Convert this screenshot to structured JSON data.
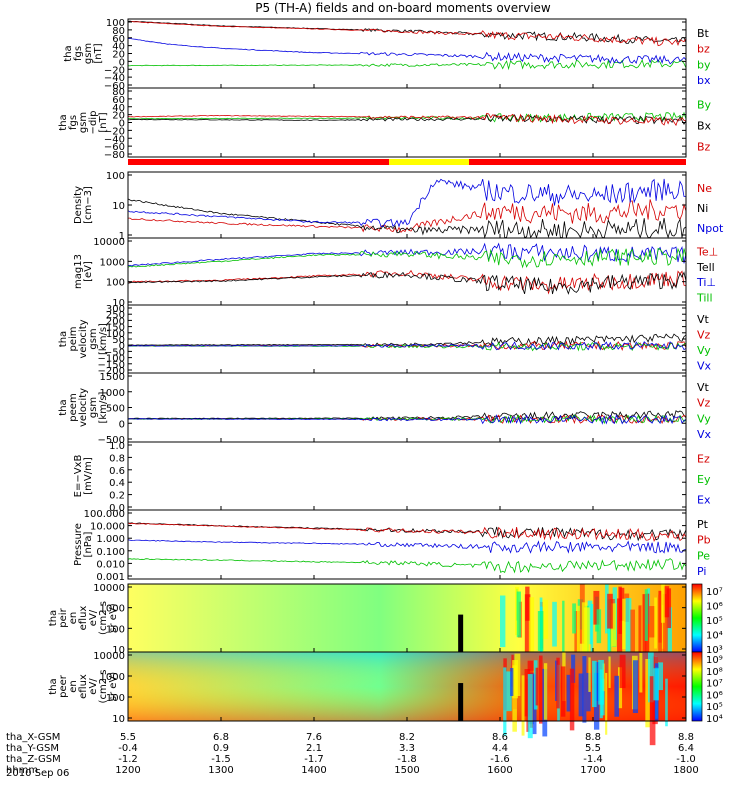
{
  "chart_data": {
    "type": "line",
    "title": "P5 (TH-A) fields and on-board moments overview",
    "date": "2010 Sep 06",
    "x_rows": [
      {
        "label": "tha_X-GSM",
        "values": [
          "5.5",
          "6.8",
          "7.6",
          "8.2",
          "8.6",
          "8.8",
          "8.8"
        ]
      },
      {
        "label": "tha_Y-GSM",
        "values": [
          "-0.4",
          "0.9",
          "2.1",
          "3.3",
          "4.4",
          "5.5",
          "6.4"
        ]
      },
      {
        "label": "tha_Z-GSM",
        "values": [
          "-1.2",
          "-1.5",
          "-1.7",
          "-1.8",
          "-1.6",
          "-1.4",
          "-1.0"
        ]
      },
      {
        "label": "hhmm",
        "values": [
          "1200",
          "1300",
          "1400",
          "1500",
          "1600",
          "1700",
          "1800"
        ]
      }
    ],
    "panels": [
      {
        "id": "p1",
        "kind": "line",
        "ylabel": [
          "tha",
          "fgs",
          "gsm",
          "[nT]"
        ],
        "ylim": [
          -60,
          100
        ],
        "ticks": [
          "100",
          "80",
          "60",
          "40",
          "20",
          "0",
          "−20",
          "−40",
          "−60"
        ],
        "legend": [
          {
            "name": "Bt",
            "color": "#000000"
          },
          {
            "name": "bz",
            "color": "#d40000"
          },
          {
            "name": "by",
            "color": "#00c000"
          },
          {
            "name": "bx",
            "color": "#0000e0"
          }
        ]
      },
      {
        "id": "p2",
        "kind": "line",
        "ylabel": [
          "tha",
          "fgs",
          "gsm",
          "−dip",
          "[nT]"
        ],
        "ylim": [
          -100,
          80
        ],
        "ticks": [
          "80",
          "60",
          "40",
          "20",
          "0",
          "−20",
          "−40",
          "−60",
          "−80"
        ],
        "legend": [
          {
            "name": "By",
            "color": "#00c000"
          },
          {
            "name": "Bx",
            "color": "#000000"
          },
          {
            "name": "Bz",
            "color": "#d40000"
          }
        ]
      },
      {
        "id": "p4",
        "kind": "line",
        "ylabel": [
          "Density",
          "[cm−3]"
        ],
        "log": true,
        "ylim": [
          0.4,
          200
        ],
        "ticks": [
          "100",
          "10",
          "1"
        ],
        "legend": [
          {
            "name": "Ne",
            "color": "#d40000"
          },
          {
            "name": "Ni",
            "color": "#000000"
          },
          {
            "name": "Npot",
            "color": "#0000e0"
          }
        ]
      },
      {
        "id": "p5",
        "kind": "line",
        "ylabel": [
          "mag13",
          "[eV]"
        ],
        "log": true,
        "ylim": [
          6,
          20000
        ],
        "ticks": [
          "10000",
          "1000",
          "100",
          "10"
        ],
        "legend": [
          {
            "name": "Te⊥",
            "color": "#d40000"
          },
          {
            "name": "Tell",
            "color": "#000000"
          },
          {
            "name": "Ti⊥",
            "color": "#0000e0"
          },
          {
            "name": "Till",
            "color": "#00c000"
          }
        ]
      },
      {
        "id": "p6",
        "kind": "line",
        "ylabel": [
          "tha",
          "peim",
          "velocity",
          "gsm",
          "[km/s]"
        ],
        "ylim": [
          -200,
          300
        ],
        "ticks": [
          "300",
          "250",
          "200",
          "150",
          "100",
          "50",
          "0",
          "−50",
          "−100",
          "−150",
          "−200"
        ],
        "legend": [
          {
            "name": "Vt",
            "color": "#000000"
          },
          {
            "name": "Vz",
            "color": "#d40000"
          },
          {
            "name": "Vy",
            "color": "#00c000"
          },
          {
            "name": "Vx",
            "color": "#0000e0"
          }
        ]
      },
      {
        "id": "p7",
        "kind": "line",
        "ylabel": [
          "tha",
          "peem",
          "velocity",
          "gsm",
          "[km/s]"
        ],
        "ylim": [
          -800,
          1600
        ],
        "ticks": [
          "1500",
          "1000",
          "500",
          "0",
          "−500"
        ],
        "legend": [
          {
            "name": "Vt",
            "color": "#000000"
          },
          {
            "name": "Vz",
            "color": "#d40000"
          },
          {
            "name": "Vy",
            "color": "#00c000"
          },
          {
            "name": "Vx",
            "color": "#0000e0"
          }
        ]
      },
      {
        "id": "p8",
        "kind": "line",
        "ylabel": [
          "E=−VxB",
          "[mV/m]"
        ],
        "ylim": [
          0,
          1
        ],
        "ticks": [
          "1.0",
          "0.8",
          "0.6",
          "0.4",
          "0.2",
          "0.0"
        ],
        "legend": [
          {
            "name": "Ez",
            "color": "#d40000"
          },
          {
            "name": "Ey",
            "color": "#00c000"
          },
          {
            "name": "Ex",
            "color": "#0000e0"
          }
        ]
      },
      {
        "id": "p9",
        "kind": "line",
        "ylabel": [
          "Pressure",
          "[nPa]"
        ],
        "log": true,
        "ylim": [
          0.0007,
          150
        ],
        "ticks": [
          "100.000",
          "10.000",
          "1.000",
          "0.100",
          "0.010",
          "0.001"
        ],
        "legend": [
          {
            "name": "Pt",
            "color": "#000000"
          },
          {
            "name": "Pb",
            "color": "#d40000"
          },
          {
            "name": "Pe",
            "color": "#00c000"
          },
          {
            "name": "Pi",
            "color": "#0000e0"
          }
        ]
      },
      {
        "id": "p10",
        "kind": "spectrogram",
        "ylabel": [
          "tha",
          "peir",
          "en",
          "eflux",
          "eV/",
          "(cm2 s",
          "sr eV)"
        ],
        "log": true,
        "ylim": [
          7,
          15000
        ],
        "ticks": [
          "10000",
          "1000",
          "100",
          "10"
        ],
        "colorbar": [
          "10⁷",
          "10⁶",
          "10⁵",
          "10⁴",
          "10³"
        ]
      },
      {
        "id": "p11",
        "kind": "spectrogram",
        "ylabel": [
          "tha",
          "peer",
          "en",
          "eflux",
          "eV/",
          "(cm2 s",
          "sr eV)"
        ],
        "log": true,
        "ylim": [
          7,
          15000
        ],
        "ticks": [
          "10000",
          "1000",
          "100",
          "10"
        ],
        "colorbar": [
          "10⁹",
          "10⁸",
          "10⁷",
          "10⁶",
          "10⁵",
          "10⁴"
        ]
      }
    ],
    "mode_bar": {
      "segments": [
        {
          "start_hhmm": "1200",
          "end_hhmm": "1508",
          "color": "#ff0000"
        },
        {
          "start_hhmm": "1508",
          "end_hhmm": "1538",
          "color": "#ffff00"
        },
        {
          "start_hhmm": "1538",
          "end_hhmm": "1800",
          "color": "#ff0000"
        }
      ]
    },
    "series_trends": {
      "p1": {
        "Bt": [
          [
            12,
            95
          ],
          [
            13,
            84
          ],
          [
            14,
            78
          ],
          [
            15,
            72
          ],
          [
            16,
            63
          ],
          [
            17,
            57
          ],
          [
            17.8,
            48
          ]
        ],
        "bz": [
          [
            12,
            94
          ],
          [
            13,
            83
          ],
          [
            14,
            77
          ],
          [
            15,
            71
          ],
          [
            16,
            62
          ],
          [
            17,
            56
          ],
          [
            17.8,
            46
          ]
        ],
        "by": [
          [
            12,
            -8
          ],
          [
            14,
            -7
          ],
          [
            16,
            -6
          ],
          [
            17.8,
            -4
          ]
        ],
        "bx": [
          [
            12,
            55
          ],
          [
            12.5,
            40
          ],
          [
            13,
            32
          ],
          [
            14,
            22
          ],
          [
            15,
            18
          ],
          [
            16,
            12
          ],
          [
            17,
            8
          ],
          [
            17.8,
            5
          ]
        ]
      },
      "p2": {
        "By": [
          [
            12,
            0
          ],
          [
            16,
            2
          ],
          [
            17.8,
            5
          ]
        ],
        "Bx": [
          [
            12,
            -2
          ],
          [
            14,
            -4
          ],
          [
            16,
            0
          ],
          [
            17.8,
            -5
          ]
        ],
        "Bz": [
          [
            12,
            5
          ],
          [
            13,
            8
          ],
          [
            14,
            6
          ],
          [
            15,
            4
          ],
          [
            16,
            3
          ],
          [
            17.8,
            -8
          ]
        ]
      },
      "p4": {
        "Ne": [
          [
            12,
            2.5
          ],
          [
            13,
            1.6
          ],
          [
            14,
            1.2
          ],
          [
            15,
            0.9
          ],
          [
            15.6,
            3
          ],
          [
            16,
            5
          ],
          [
            17,
            4
          ],
          [
            17.8,
            6
          ]
        ],
        "Ni": [
          [
            12,
            15
          ],
          [
            13,
            4
          ],
          [
            14,
            1.8
          ],
          [
            15,
            0.8
          ],
          [
            16,
            0.9
          ],
          [
            17,
            0.8
          ],
          [
            17.8,
            1
          ]
        ],
        "Npot": [
          [
            12,
            5
          ],
          [
            13,
            3
          ],
          [
            14,
            1.8
          ],
          [
            15,
            1.6
          ],
          [
            15.3,
            90
          ],
          [
            16,
            30
          ],
          [
            17,
            20
          ],
          [
            17.8,
            40
          ]
        ]
      },
      "p5": {
        "Te⊥": [
          [
            12,
            100
          ],
          [
            13,
            120
          ],
          [
            14,
            200
          ],
          [
            15,
            300
          ],
          [
            15.8,
            120
          ],
          [
            16.5,
            60
          ],
          [
            17,
            90
          ],
          [
            17.8,
            150
          ]
        ],
        "Tell": [
          [
            12,
            90
          ],
          [
            13,
            110
          ],
          [
            14,
            180
          ],
          [
            15,
            250
          ],
          [
            15.8,
            100
          ],
          [
            16.5,
            50
          ],
          [
            17,
            80
          ],
          [
            17.8,
            120
          ]
        ],
        "Ti⊥": [
          [
            12,
            700
          ],
          [
            13,
            1500
          ],
          [
            14,
            3000
          ],
          [
            15,
            3500
          ],
          [
            16,
            4000
          ],
          [
            17,
            3000
          ],
          [
            17.8,
            2500
          ]
        ],
        "Till": [
          [
            12,
            600
          ],
          [
            13,
            1200
          ],
          [
            14,
            2500
          ],
          [
            15,
            3000
          ],
          [
            16,
            1500
          ],
          [
            17,
            2000
          ],
          [
            17.8,
            2000
          ]
        ]
      },
      "p6": {
        "Vt": [
          [
            12,
            5
          ],
          [
            15,
            10
          ],
          [
            16,
            30
          ],
          [
            17,
            45
          ],
          [
            17.8,
            60
          ]
        ],
        "Vz": [
          [
            12,
            0
          ],
          [
            16,
            0
          ],
          [
            17.8,
            0
          ]
        ],
        "Vy": [
          [
            12,
            0
          ],
          [
            16,
            -5
          ],
          [
            17.8,
            -5
          ]
        ],
        "Vx": [
          [
            12,
            0
          ],
          [
            16,
            0
          ],
          [
            17.8,
            0
          ]
        ]
      },
      "p7": {
        "Vt": [
          [
            12,
            20
          ],
          [
            15,
            30
          ],
          [
            16,
            80
          ],
          [
            17,
            120
          ],
          [
            17.8,
            150
          ]
        ],
        "Vz": [
          [
            12,
            0
          ],
          [
            17.8,
            0
          ]
        ],
        "Vy": [
          [
            12,
            0
          ],
          [
            17.8,
            0
          ]
        ],
        "Vx": [
          [
            12,
            0
          ],
          [
            17.8,
            -20
          ]
        ]
      },
      "p9": {
        "Pt": [
          [
            12,
            15
          ],
          [
            13,
            9
          ],
          [
            14,
            6
          ],
          [
            15,
            4
          ],
          [
            16,
            3
          ],
          [
            17,
            2.2
          ],
          [
            17.8,
            1.8
          ]
        ],
        "Pb": [
          [
            12,
            14
          ],
          [
            13,
            8.5
          ],
          [
            14,
            5.5
          ],
          [
            15,
            3.7
          ],
          [
            16,
            2.7
          ],
          [
            17,
            2
          ],
          [
            17.8,
            1.6
          ]
        ],
        "Pe": [
          [
            12,
            0.025
          ],
          [
            13,
            0.02
          ],
          [
            14,
            0.015
          ],
          [
            15,
            0.012
          ],
          [
            16,
            0.006
          ],
          [
            17,
            0.008
          ],
          [
            17.8,
            0.01
          ]
        ],
        "Pi": [
          [
            12,
            0.7
          ],
          [
            13,
            0.5
          ],
          [
            14,
            0.4
          ],
          [
            15,
            0.3
          ],
          [
            16,
            0.2
          ],
          [
            17,
            0.2
          ],
          [
            17.8,
            0.2
          ]
        ]
      }
    }
  }
}
